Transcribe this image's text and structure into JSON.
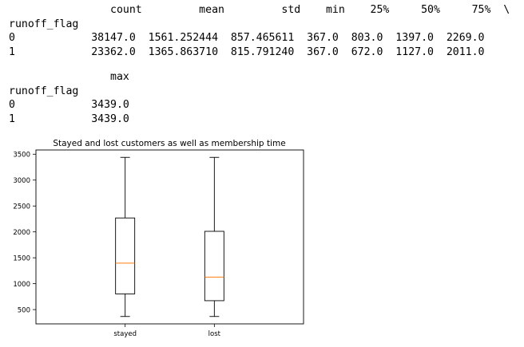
{
  "output_text": {
    "table1_header": "                count         mean         std    min    25%     50%     75%  \\",
    "table1_index": "runoff_flag",
    "table1_row0": "0            38147.0  1561.252444  857.465611  367.0  803.0  1397.0  2269.0",
    "table1_row1": "1            23362.0  1365.863710  815.791240  367.0  672.0  1127.0  2011.0",
    "table2_header": "                max",
    "table2_index": "runoff_flag",
    "table2_row0": "0            3439.0",
    "table2_row1": "1            3439.0"
  },
  "chart_data": {
    "type": "box",
    "title": "Stayed and lost customers as well as membership time",
    "xlabel": "",
    "ylabel": "",
    "categories": [
      "stayed",
      "lost"
    ],
    "boxes": [
      {
        "min": 367,
        "q1": 803,
        "median": 1397,
        "q3": 2269,
        "max": 3439
      },
      {
        "min": 367,
        "q1": 672,
        "median": 1127,
        "q3": 2011,
        "max": 3439
      }
    ],
    "yticks": [
      500,
      1000,
      1500,
      2000,
      2500,
      3000,
      3500
    ],
    "ylim": [
      224.4,
      3581.6
    ],
    "colors": {
      "median": "#ff7f0e",
      "lines": "#000000"
    }
  }
}
